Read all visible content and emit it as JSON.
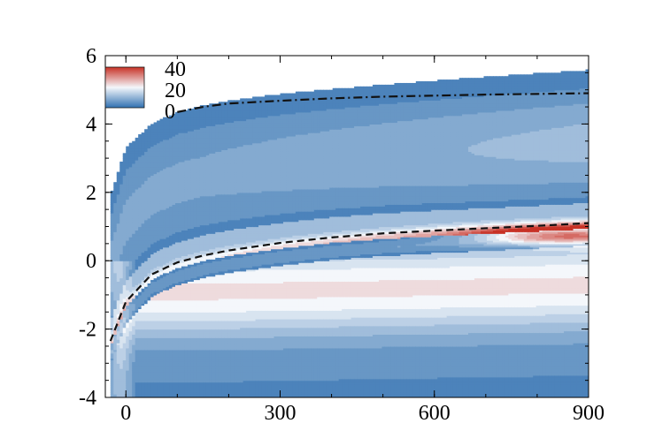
{
  "chart_data": {
    "type": "heatmap",
    "title": "",
    "xlabel": "",
    "ylabel": "",
    "xlim": [
      -40,
      900
    ],
    "ylim": [
      -4,
      6
    ],
    "xticks": [
      {
        "value": 0,
        "label": "0"
      },
      {
        "value": 300,
        "label": "300"
      },
      {
        "value": 600,
        "label": "600"
      },
      {
        "value": 900,
        "label": "900"
      }
    ],
    "yticks": [
      {
        "value": -4,
        "label": "-4"
      },
      {
        "value": -2,
        "label": "-2"
      },
      {
        "value": 0,
        "label": "0"
      },
      {
        "value": 2,
        "label": "2"
      },
      {
        "value": 4,
        "label": "4"
      },
      {
        "value": 6,
        "label": "6"
      }
    ],
    "colorbar": {
      "range": [
        0,
        40
      ],
      "ticks": [
        {
          "value": 40,
          "label": "40"
        },
        {
          "value": 20,
          "label": "20"
        },
        {
          "value": 0,
          "label": "0"
        }
      ],
      "placement": "top-left"
    },
    "colors": {
      "low": "#3070b0",
      "mid": "#f4f7fb",
      "high": "#c83226"
    },
    "x_samples": [
      -30,
      0,
      50,
      100,
      150,
      200,
      300,
      400,
      500,
      600,
      700,
      800,
      900
    ],
    "outer_boundary": [
      1.9,
      3.3,
      4.0,
      4.35,
      4.55,
      4.68,
      4.88,
      5.02,
      5.15,
      5.27,
      5.38,
      5.48,
      5.58
    ],
    "dash_dot_line": [
      null,
      null,
      null,
      4.35,
      4.5,
      4.6,
      4.68,
      4.75,
      4.8,
      4.83,
      4.86,
      4.88,
      4.9
    ],
    "dashed_line": [
      -2.35,
      -1.2,
      -0.4,
      -0.05,
      0.15,
      0.3,
      0.52,
      0.68,
      0.8,
      0.88,
      0.95,
      1.02,
      1.1
    ],
    "max_value_location": {
      "x": 860,
      "y": 0.75,
      "value": 40
    }
  }
}
